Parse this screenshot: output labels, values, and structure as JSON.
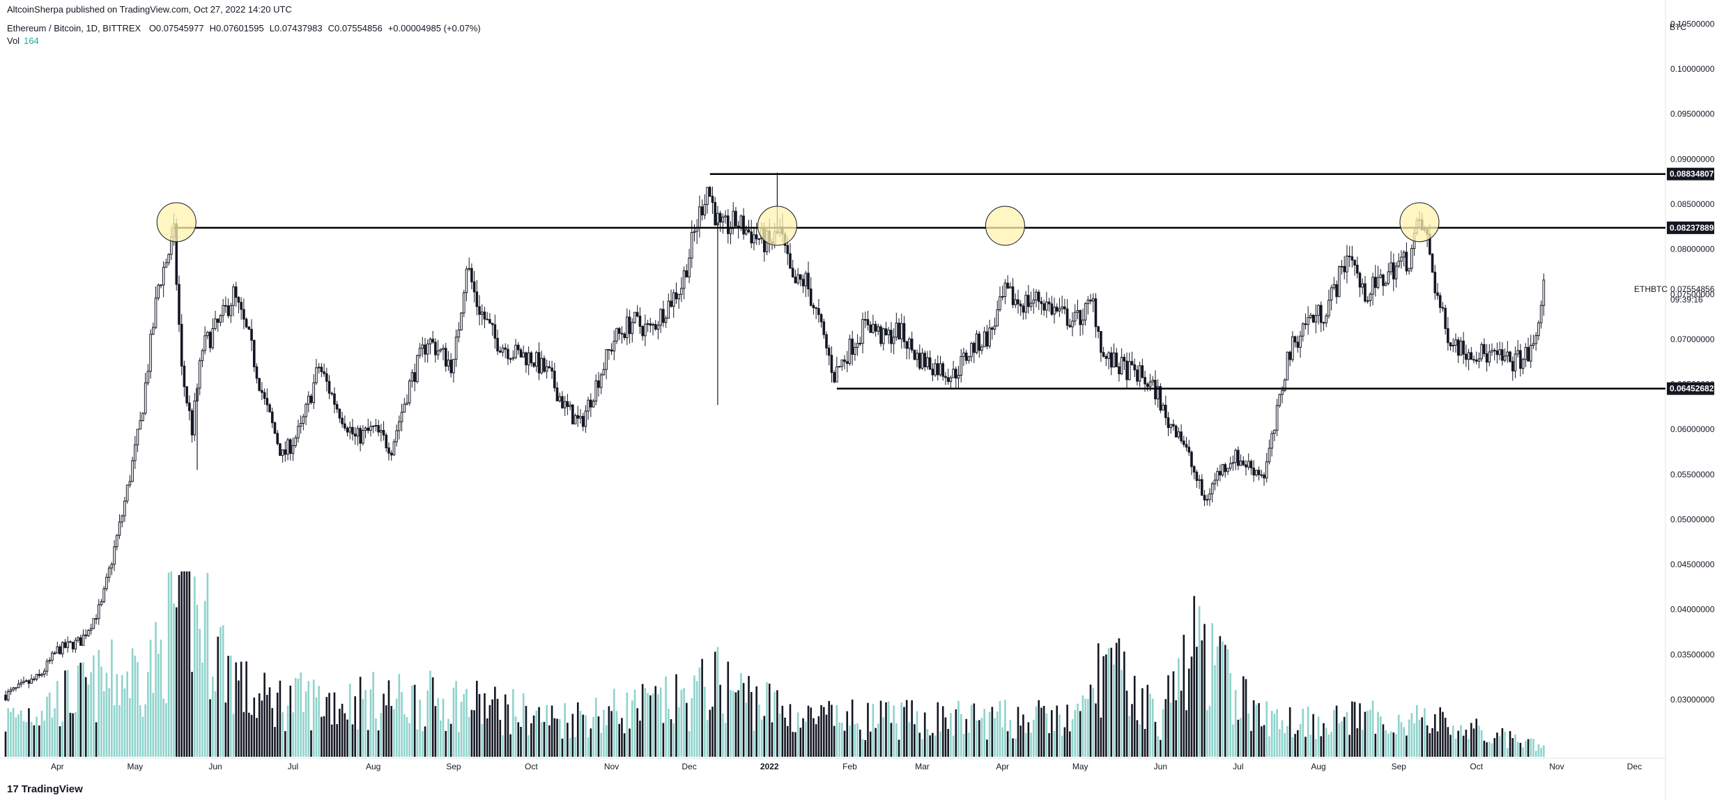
{
  "header": {
    "published": "AltcoinSherpa published on TradingView.com, Oct 27, 2022 14:20 UTC",
    "symbol": "Ethereum / Bitcoin, 1D, BITTREX",
    "ohlc": [
      {
        "k": "O",
        "v": "0.07545977"
      },
      {
        "k": "H",
        "v": "0.07601595"
      },
      {
        "k": "L",
        "v": "0.07437983"
      },
      {
        "k": "C",
        "v": "0.07554856"
      },
      {
        "k": "",
        "v": "+0.00004985 (+0.07%)"
      }
    ],
    "vol_label": "Vol",
    "vol_value": "164"
  },
  "axis": {
    "unit": "BTC"
  },
  "price_tag": {
    "symbol": "ETHBTC",
    "price": "0.07554856",
    "countdown": "09:39:16"
  },
  "logo": {
    "mark": "17",
    "text": "TradingView"
  },
  "colors": {
    "up": "#ffffff",
    "down": "#131722",
    "vol_up": "#8fd3cc",
    "vol_down": "#131722",
    "ellipse": "#fff3b0",
    "line": "#000000"
  },
  "chart_data": {
    "type": "candlestick",
    "xlabels": [
      {
        "label": "Apr",
        "date": "2021-04-01"
      },
      {
        "label": "May",
        "date": "2021-05-01"
      },
      {
        "label": "Jun",
        "date": "2021-06-01"
      },
      {
        "label": "Jul",
        "date": "2021-07-01"
      },
      {
        "label": "Aug",
        "date": "2021-08-01"
      },
      {
        "label": "Sep",
        "date": "2021-09-01"
      },
      {
        "label": "Oct",
        "date": "2021-10-01"
      },
      {
        "label": "Nov",
        "date": "2021-11-01"
      },
      {
        "label": "Dec",
        "date": "2021-12-01"
      },
      {
        "label": "2022",
        "date": "2022-01-01"
      },
      {
        "label": "Feb",
        "date": "2022-02-01"
      },
      {
        "label": "Mar",
        "date": "2022-03-01"
      },
      {
        "label": "Apr",
        "date": "2022-04-01"
      },
      {
        "label": "May",
        "date": "2022-05-01"
      },
      {
        "label": "Jun",
        "date": "2022-06-01"
      },
      {
        "label": "Jul",
        "date": "2022-07-01"
      },
      {
        "label": "Aug",
        "date": "2022-08-01"
      },
      {
        "label": "Sep",
        "date": "2022-09-01"
      },
      {
        "label": "Oct",
        "date": "2022-10-01"
      },
      {
        "label": "Nov",
        "date": "2022-11-01"
      },
      {
        "label": "Dec",
        "date": "2022-12-01"
      }
    ],
    "yticks": [
      "0.10500000",
      "0.10000000",
      "0.09500000",
      "0.09000000",
      "0.08500000",
      "0.08000000",
      "0.07500000",
      "0.07000000",
      "0.06500000",
      "0.06000000",
      "0.05500000",
      "0.05000000",
      "0.04500000",
      "0.04000000",
      "0.03500000",
      "0.03000000"
    ],
    "ylim": [
      0.0235,
      0.1055
    ],
    "xlim": [
      "2021-03-12",
      "2022-12-13"
    ],
    "close_path": [
      [
        "2021-03-12",
        0.0305
      ],
      [
        "2021-03-25",
        0.0325
      ],
      [
        "2021-04-01",
        0.0355
      ],
      [
        "2021-04-10",
        0.0365
      ],
      [
        "2021-04-18",
        0.0405
      ],
      [
        "2021-04-26",
        0.0505
      ],
      [
        "2021-05-03",
        0.0605
      ],
      [
        "2021-05-10",
        0.076
      ],
      [
        "2021-05-16",
        0.0815
      ],
      [
        "2021-05-19",
        0.0665
      ],
      [
        "2021-05-23",
        0.06
      ],
      [
        "2021-05-27",
        0.069
      ],
      [
        "2021-06-03",
        0.072
      ],
      [
        "2021-06-08",
        0.075
      ],
      [
        "2021-06-14",
        0.07
      ],
      [
        "2021-06-20",
        0.063
      ],
      [
        "2021-06-27",
        0.057
      ],
      [
        "2021-07-04",
        0.06
      ],
      [
        "2021-07-11",
        0.067
      ],
      [
        "2021-07-18",
        0.0625
      ],
      [
        "2021-07-25",
        0.059
      ],
      [
        "2021-08-01",
        0.06
      ],
      [
        "2021-08-08",
        0.058
      ],
      [
        "2021-08-15",
        0.065
      ],
      [
        "2021-08-22",
        0.07
      ],
      [
        "2021-09-01",
        0.067
      ],
      [
        "2021-09-06",
        0.0785
      ],
      [
        "2021-09-10",
        0.074
      ],
      [
        "2021-09-17",
        0.07
      ],
      [
        "2021-09-24",
        0.0685
      ],
      [
        "2021-10-01",
        0.068
      ],
      [
        "2021-10-08",
        0.066
      ],
      [
        "2021-10-14",
        0.0625
      ],
      [
        "2021-10-20",
        0.0605
      ],
      [
        "2021-10-26",
        0.065
      ],
      [
        "2021-11-02",
        0.07
      ],
      [
        "2021-11-09",
        0.072
      ],
      [
        "2021-11-16",
        0.071
      ],
      [
        "2021-11-23",
        0.074
      ],
      [
        "2021-11-28",
        0.076
      ],
      [
        "2021-12-05",
        0.084
      ],
      [
        "2021-12-08",
        0.087
      ],
      [
        "2021-12-13",
        0.082
      ],
      [
        "2021-12-19",
        0.083
      ],
      [
        "2021-12-26",
        0.0815
      ],
      [
        "2022-01-01",
        0.0805
      ],
      [
        "2022-01-05",
        0.082
      ],
      [
        "2022-01-10",
        0.076
      ],
      [
        "2022-01-15",
        0.0765
      ],
      [
        "2022-01-20",
        0.072
      ],
      [
        "2022-01-26",
        0.066
      ],
      [
        "2022-02-01",
        0.069
      ],
      [
        "2022-02-08",
        0.072
      ],
      [
        "2022-02-14",
        0.07
      ],
      [
        "2022-02-20",
        0.071
      ],
      [
        "2022-02-27",
        0.068
      ],
      [
        "2022-03-06",
        0.067
      ],
      [
        "2022-03-13",
        0.066
      ],
      [
        "2022-03-20",
        0.069
      ],
      [
        "2022-03-27",
        0.0705
      ],
      [
        "2022-04-02",
        0.075
      ],
      [
        "2022-04-08",
        0.074
      ],
      [
        "2022-04-15",
        0.0745
      ],
      [
        "2022-04-22",
        0.073
      ],
      [
        "2022-04-29",
        0.072
      ],
      [
        "2022-05-06",
        0.074
      ],
      [
        "2022-05-10",
        0.068
      ],
      [
        "2022-05-16",
        0.067
      ],
      [
        "2022-05-24",
        0.066
      ],
      [
        "2022-05-31",
        0.064
      ],
      [
        "2022-06-03",
        0.061
      ],
      [
        "2022-06-08",
        0.06
      ],
      [
        "2022-06-13",
        0.056
      ],
      [
        "2022-06-18",
        0.052
      ],
      [
        "2022-06-23",
        0.055
      ],
      [
        "2022-06-29",
        0.057
      ],
      [
        "2022-07-05",
        0.056
      ],
      [
        "2022-07-11",
        0.055
      ],
      [
        "2022-07-15",
        0.06
      ],
      [
        "2022-07-20",
        0.068
      ],
      [
        "2022-07-27",
        0.072
      ],
      [
        "2022-08-03",
        0.073
      ],
      [
        "2022-08-08",
        0.076
      ],
      [
        "2022-08-13",
        0.08
      ],
      [
        "2022-08-18",
        0.075
      ],
      [
        "2022-08-24",
        0.076
      ],
      [
        "2022-08-30",
        0.078
      ],
      [
        "2022-09-05",
        0.079
      ],
      [
        "2022-09-09",
        0.083
      ],
      [
        "2022-09-12",
        0.081
      ],
      [
        "2022-09-15",
        0.076
      ],
      [
        "2022-09-19",
        0.071
      ],
      [
        "2022-09-25",
        0.069
      ],
      [
        "2022-10-02",
        0.0685
      ],
      [
        "2022-10-08",
        0.068
      ],
      [
        "2022-10-14",
        0.0675
      ],
      [
        "2022-10-20",
        0.068
      ],
      [
        "2022-10-23",
        0.069
      ],
      [
        "2022-10-25",
        0.072
      ],
      [
        "2022-10-26",
        0.0745
      ],
      [
        "2022-10-27",
        0.07554856
      ]
    ],
    "spikes": [
      {
        "date": "2021-05-25",
        "low": 0.0555
      },
      {
        "date": "2021-12-12",
        "low": 0.0627
      },
      {
        "date": "2022-01-04",
        "high": 0.0885
      }
    ],
    "volume_path": [
      [
        "2021-03-12",
        2
      ],
      [
        "2021-04-20",
        4
      ],
      [
        "2021-05-10",
        5
      ],
      [
        "2021-05-19",
        9
      ],
      [
        "2021-06-15",
        3
      ],
      [
        "2021-07-20",
        3
      ],
      [
        "2021-09-01",
        3
      ],
      [
        "2021-10-10",
        2
      ],
      [
        "2021-12-01",
        3
      ],
      [
        "2021-12-10",
        4
      ],
      [
        "2022-01-15",
        2
      ],
      [
        "2022-03-01",
        2
      ],
      [
        "2022-05-01",
        2
      ],
      [
        "2022-05-10",
        5
      ],
      [
        "2022-06-01",
        2
      ],
      [
        "2022-06-14",
        6
      ],
      [
        "2022-07-10",
        2
      ],
      [
        "2022-08-15",
        2
      ],
      [
        "2022-09-10",
        2
      ],
      [
        "2022-10-27",
        0.5
      ]
    ],
    "levels": [
      {
        "label": "0.08834807",
        "value": 0.08834807,
        "from": "2021-12-09"
      },
      {
        "label": "0.08237889",
        "value": 0.08237889,
        "from": "2021-05-16"
      },
      {
        "label": "0.06452682",
        "value": 0.06452682,
        "from": "2022-01-27"
      }
    ],
    "circles": [
      {
        "date": "2021-05-17",
        "value": 0.083
      },
      {
        "date": "2022-01-04",
        "value": 0.0826
      },
      {
        "date": "2022-04-02",
        "value": 0.0826
      },
      {
        "date": "2022-09-09",
        "value": 0.083
      }
    ]
  }
}
